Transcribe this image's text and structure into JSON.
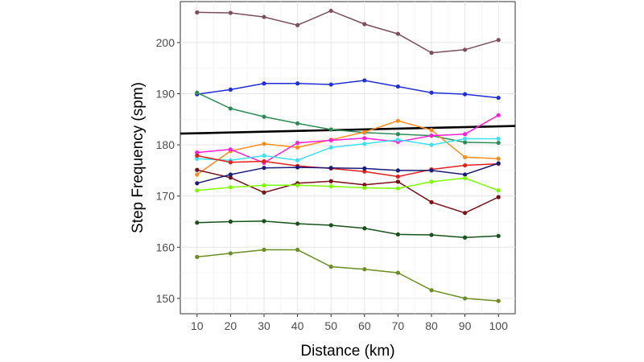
{
  "chart_data": {
    "type": "line",
    "title": "",
    "xlabel": "Distance (km)",
    "ylabel": "Step Frequency (spm)",
    "x": [
      10,
      20,
      30,
      40,
      50,
      60,
      70,
      80,
      90,
      100
    ],
    "xlim": [
      5,
      105
    ],
    "ylim": [
      147,
      208
    ],
    "x_ticks": [
      10,
      20,
      30,
      40,
      50,
      60,
      70,
      80,
      90,
      100
    ],
    "y_ticks": [
      150,
      160,
      170,
      180,
      190,
      200
    ],
    "grid": true,
    "legend": "none",
    "series": [
      {
        "color": "#7d4f5e",
        "values": [
          205.9,
          205.8,
          205.0,
          203.4,
          206.2,
          203.6,
          201.7,
          198.0,
          198.6,
          200.5
        ]
      },
      {
        "color": "#1f2fd6",
        "values": [
          189.9,
          190.8,
          192.0,
          192.0,
          191.8,
          192.6,
          191.4,
          190.2,
          189.9,
          189.2
        ]
      },
      {
        "color": "#2e8b57",
        "values": [
          190.2,
          187.1,
          185.5,
          184.2,
          183.0,
          182.4,
          182.1,
          181.8,
          180.5,
          180.4
        ]
      },
      {
        "color": "#ff8c1a",
        "values": [
          174.2,
          178.8,
          180.2,
          179.5,
          181.0,
          182.5,
          184.7,
          182.9,
          177.6,
          177.3
        ]
      },
      {
        "color": "#ff1fd8",
        "values": [
          178.5,
          179.1,
          176.5,
          180.4,
          180.9,
          181.3,
          180.6,
          181.8,
          182.1,
          185.8
        ]
      },
      {
        "color": "#3de0f0",
        "values": [
          177.3,
          177.0,
          177.9,
          177.0,
          179.5,
          180.2,
          181.0,
          180.0,
          181.2,
          181.2
        ]
      },
      {
        "color": "#e0201c",
        "values": [
          177.9,
          176.6,
          176.8,
          175.9,
          175.4,
          174.8,
          173.8,
          175.2,
          176.0,
          176.3
        ]
      },
      {
        "color": "#7a0f17",
        "values": [
          175.1,
          173.6,
          170.7,
          172.5,
          172.9,
          172.2,
          172.8,
          168.8,
          166.7,
          169.8
        ]
      },
      {
        "color": "#1b1b7a",
        "values": [
          172.5,
          174.2,
          175.5,
          175.6,
          175.5,
          175.4,
          175.0,
          175.0,
          174.2,
          176.4
        ]
      },
      {
        "color": "#7cfc00",
        "values": [
          171.1,
          171.7,
          172.1,
          172.1,
          171.9,
          171.6,
          171.5,
          172.8,
          173.5,
          171.1
        ]
      },
      {
        "color": "#17531a",
        "values": [
          164.8,
          165.0,
          165.1,
          164.6,
          164.3,
          163.7,
          162.5,
          162.4,
          161.9,
          162.2
        ]
      },
      {
        "color": "#6b8e23",
        "values": [
          158.1,
          158.8,
          159.5,
          159.5,
          156.2,
          155.7,
          155.0,
          151.6,
          150.0,
          149.5
        ]
      }
    ],
    "trend_line": {
      "color": "#000000",
      "start": [
        5,
        182.2
      ],
      "end": [
        105,
        183.7
      ]
    }
  }
}
